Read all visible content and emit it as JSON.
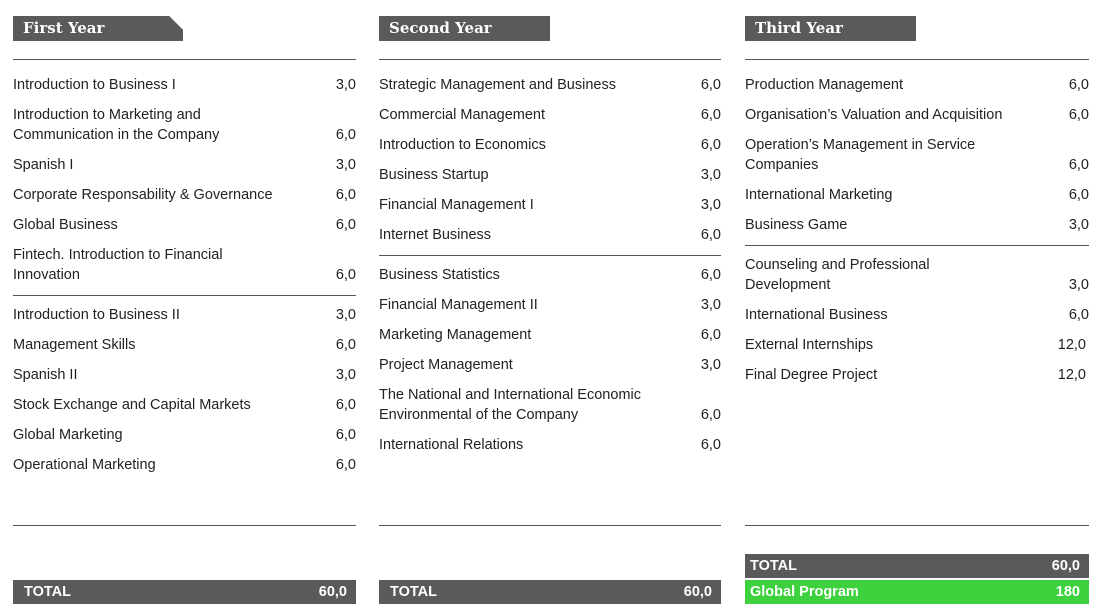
{
  "first_year": {
    "title": "First Year",
    "courses": [
      {
        "name": "Introduction to Business I",
        "credits": "3,0"
      },
      {
        "name": "Introduction to Marketing and Communication in the Company",
        "credits": "6,0"
      },
      {
        "name": "Spanish I",
        "credits": "3,0"
      },
      {
        "name": "Corporate Responsability & Governance",
        "credits": "6,0"
      },
      {
        "name": "Global Business",
        "credits": "6,0"
      },
      {
        "name": "Fintech. Introduction to Financial Innovation",
        "credits": "6,0"
      },
      {
        "name": "Introduction to Business II",
        "credits": "3,0"
      },
      {
        "name": "Management Skills",
        "credits": "6,0"
      },
      {
        "name": "Spanish II",
        "credits": "3,0"
      },
      {
        "name": "Stock Exchange and Capital Markets",
        "credits": "6,0"
      },
      {
        "name": "Global Marketing",
        "credits": "6,0"
      },
      {
        "name": "Operational Marketing",
        "credits": "6,0"
      }
    ],
    "total_label": "TOTAL",
    "total_value": "60,0"
  },
  "second_year": {
    "title": "Second Year",
    "courses": [
      {
        "name": "Strategic Management and Business",
        "credits": "6,0"
      },
      {
        "name": "Commercial Management",
        "credits": "6,0"
      },
      {
        "name": "Introduction to Economics",
        "credits": "6,0"
      },
      {
        "name": "Business Startup",
        "credits": "3,0"
      },
      {
        "name": "Financial Management I",
        "credits": "3,0"
      },
      {
        "name": "Internet Business",
        "credits": "6,0"
      },
      {
        "name": "Business Statistics",
        "credits": "6,0"
      },
      {
        "name": "Financial Management II",
        "credits": "3,0"
      },
      {
        "name": "Marketing Management",
        "credits": "6,0"
      },
      {
        "name": "Project Management",
        "credits": "3,0"
      },
      {
        "name": "The National and International Economic Environmental of the Company",
        "credits": "6,0"
      },
      {
        "name": "International Relations",
        "credits": "6,0"
      }
    ],
    "total_label": "TOTAL",
    "total_value": "60,0"
  },
  "third_year": {
    "title": "Third Year",
    "courses": [
      {
        "name": "Production Management",
        "credits": "6,0"
      },
      {
        "name": "Organisation’s Valuation and Acquisition",
        "credits": "6,0"
      },
      {
        "name": "Operation’s Management in Service Companies",
        "credits": "6,0"
      },
      {
        "name": "International Marketing",
        "credits": "6,0"
      },
      {
        "name": "Business Game",
        "credits": "3,0"
      },
      {
        "name": "Counseling and Professional Development",
        "credits": "3,0"
      },
      {
        "name": "International Business",
        "credits": "6,0"
      },
      {
        "name": "External Internships",
        "credits": "12,0"
      },
      {
        "name": "Final Degree Project",
        "credits": "12,0"
      }
    ],
    "total_label": "TOTAL",
    "total_value": "60,0",
    "global_label": "Global Program",
    "global_value": "180",
    "global_color": "#3dd13d"
  },
  "colors": {
    "header_bg": "#5a5a5a",
    "total_bg": "#5a5a5a",
    "text": "#222222"
  }
}
